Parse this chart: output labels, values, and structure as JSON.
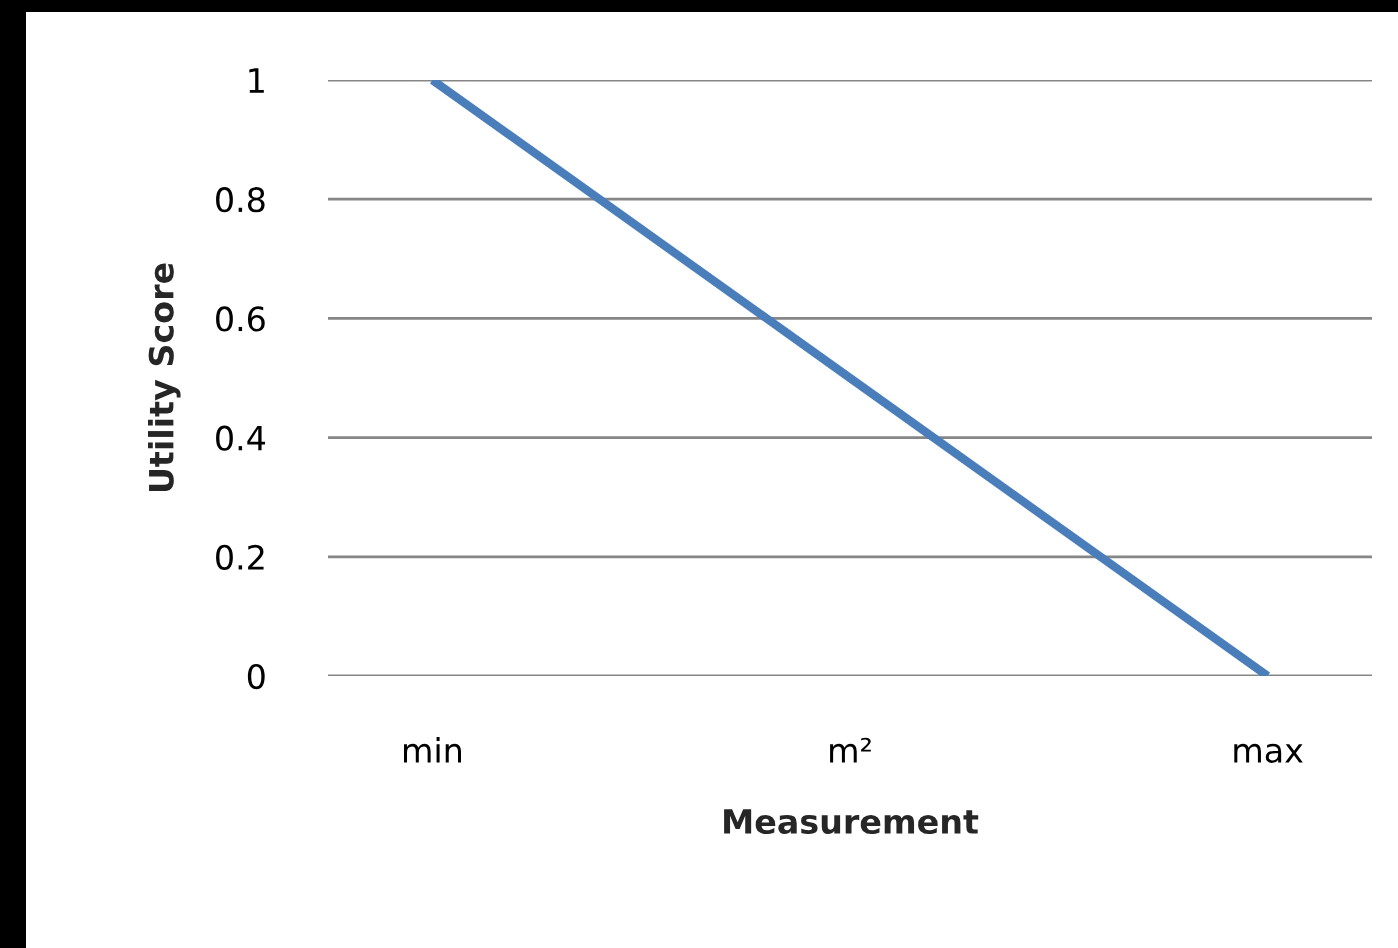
{
  "chart_data": {
    "type": "line",
    "xlabel": "Measurement",
    "ylabel": "Utility Score",
    "categories": [
      "min",
      "m²",
      "max"
    ],
    "series": [
      {
        "color": "#4a7ebb",
        "values": [
          1,
          0.5,
          0
        ]
      }
    ],
    "ylim": [
      0,
      1
    ],
    "yticks": [
      0,
      0.2,
      0.4,
      0.6,
      0.8,
      1
    ],
    "grid": "y",
    "marker": "none",
    "line_style": "solid"
  }
}
